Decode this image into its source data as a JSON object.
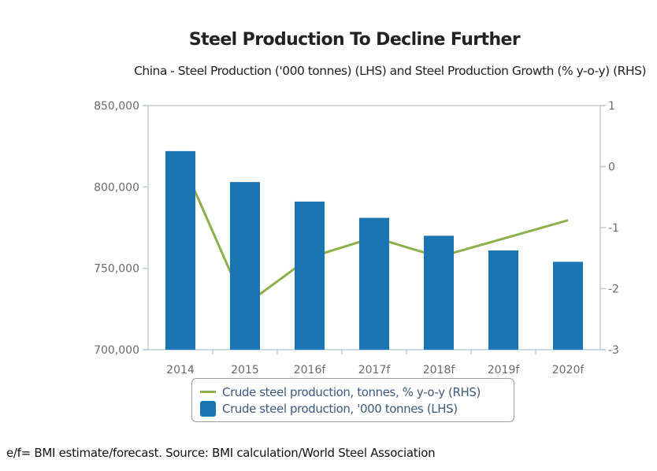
{
  "chart_data": {
    "type": "bar",
    "title": "Steel Production To Decline Further",
    "subtitle": "China - Steel Production ('000 tonnes) (LHS) and Steel Production Growth (% y-o-y) (RHS)",
    "categories": [
      "2014",
      "2015",
      "2016f",
      "2017f",
      "2018f",
      "2019f",
      "2020f"
    ],
    "series": [
      {
        "name": "Crude steel production, '000 tonnes (LHS)",
        "type": "bar",
        "axis": "left",
        "color": "#1a75b3",
        "values": [
          822000,
          803000,
          791000,
          781000,
          770000,
          761000,
          754000
        ]
      },
      {
        "name": "Crude steel production, tonnes, % y-o-y (RHS)",
        "type": "line",
        "axis": "right",
        "color": "#8bb04c",
        "values": [
          0.14,
          -2.27,
          -1.49,
          -1.16,
          -1.48,
          -1.18,
          -0.88
        ]
      }
    ],
    "left_axis": {
      "ylim": [
        700000,
        850000
      ],
      "ticks": [
        700000,
        750000,
        800000,
        850000
      ],
      "tick_labels": [
        "700,000",
        "750,000",
        "800,000",
        "850,000"
      ]
    },
    "right_axis": {
      "ylim": [
        -3,
        1
      ],
      "ticks": [
        -3,
        -2,
        -1,
        0,
        1
      ],
      "tick_labels": [
        "-3",
        "-2",
        "-1",
        "0",
        "1"
      ]
    },
    "xlabel": "",
    "ylabel": "",
    "grid": false,
    "legend_position": "bottom"
  },
  "legend": {
    "line_label": "Crude steel production, tonnes, % y-o-y (RHS)",
    "bar_label": "Crude steel production, '000 tonnes (LHS)"
  },
  "footer": "e/f= BMI estimate/forecast. Source: BMI calculation/World Steel Association"
}
